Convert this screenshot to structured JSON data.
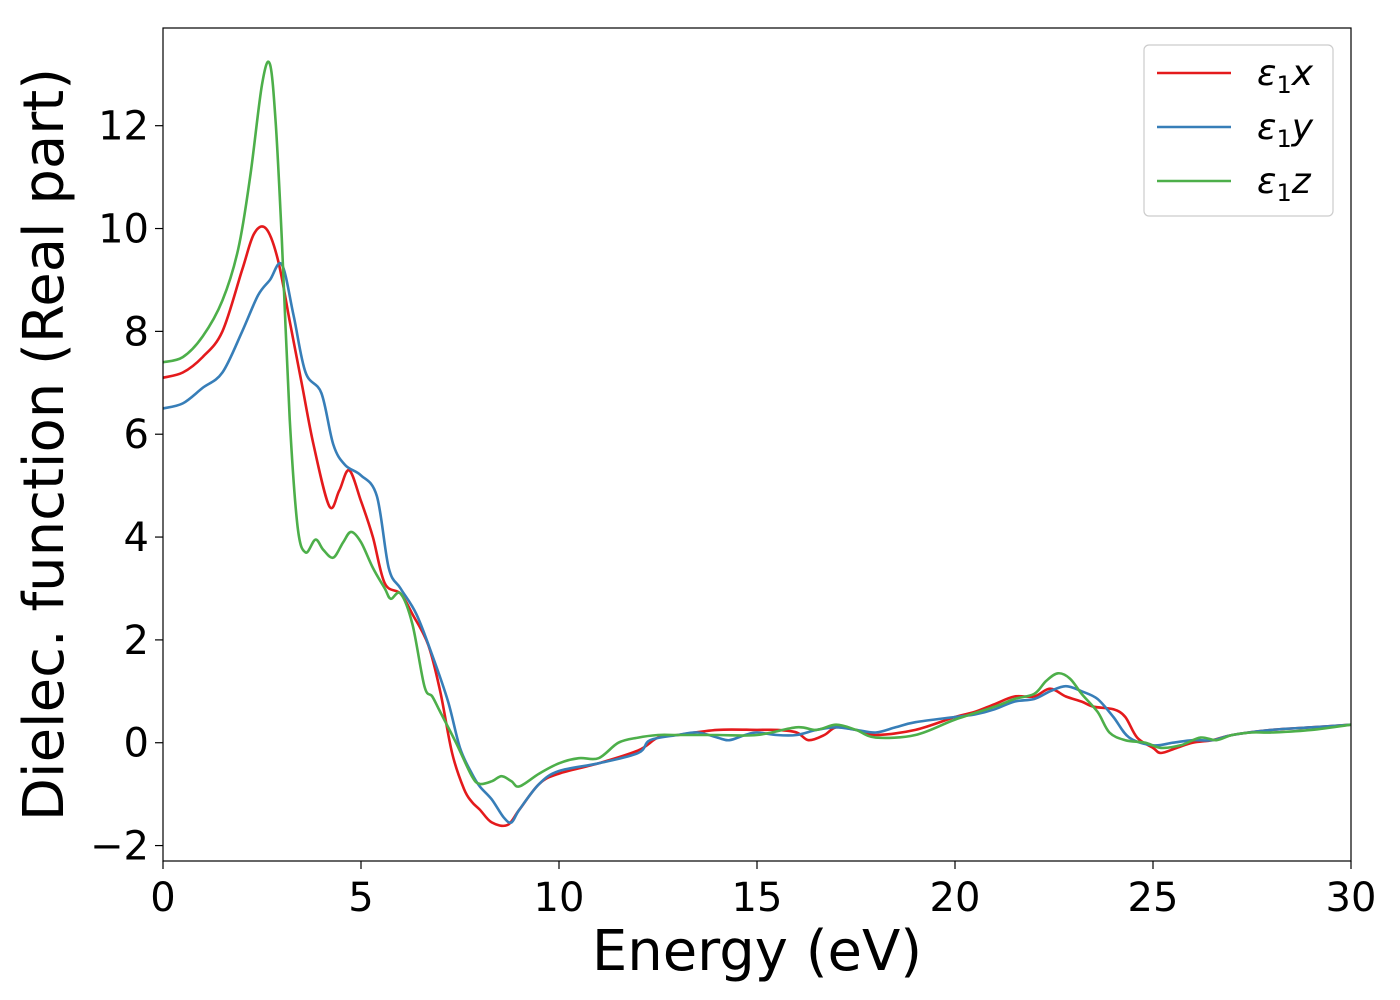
{
  "chart_data": {
    "type": "line",
    "title": "",
    "xlabel": "Energy (eV)",
    "ylabel": "Dielec. function (Real part)",
    "xlim": [
      0,
      30
    ],
    "ylim": [
      -2.3,
      13.9
    ],
    "xticks": [
      0,
      5,
      10,
      15,
      20,
      25,
      30
    ],
    "xtick_labels": [
      "0",
      "5",
      "10",
      "15",
      "20",
      "25",
      "30"
    ],
    "yticks": [
      -2,
      0,
      2,
      4,
      6,
      8,
      10,
      12
    ],
    "ytick_labels": [
      "−2",
      "0",
      "2",
      "4",
      "6",
      "8",
      "10",
      "12"
    ],
    "grid": false,
    "legend_position": "top-right",
    "series": [
      {
        "name": "ε1x",
        "symbol": "ε",
        "subscript": "1",
        "component": "x",
        "color": "#e41a1c",
        "points": [
          [
            0,
            7.1
          ],
          [
            0.5,
            7.2
          ],
          [
            1,
            7.5
          ],
          [
            1.5,
            8.0
          ],
          [
            2,
            9.2
          ],
          [
            2.3,
            9.9
          ],
          [
            2.6,
            10.0
          ],
          [
            2.9,
            9.4
          ],
          [
            3.2,
            8.2
          ],
          [
            3.5,
            7.0
          ],
          [
            3.8,
            5.8
          ],
          [
            4.2,
            4.6
          ],
          [
            4.45,
            4.9
          ],
          [
            4.7,
            5.3
          ],
          [
            5.0,
            4.7
          ],
          [
            5.3,
            4.0
          ],
          [
            5.6,
            3.1
          ],
          [
            6.0,
            2.9
          ],
          [
            6.3,
            2.5
          ],
          [
            6.7,
            1.9
          ],
          [
            7.0,
            1.0
          ],
          [
            7.3,
            -0.2
          ],
          [
            7.6,
            -0.9
          ],
          [
            7.8,
            -1.15
          ],
          [
            8.0,
            -1.3
          ],
          [
            8.3,
            -1.55
          ],
          [
            8.7,
            -1.6
          ],
          [
            9.0,
            -1.3
          ],
          [
            9.5,
            -0.8
          ],
          [
            10,
            -0.6
          ],
          [
            11,
            -0.4
          ],
          [
            12,
            -0.15
          ],
          [
            12.5,
            0.1
          ],
          [
            13,
            0.15
          ],
          [
            14,
            0.25
          ],
          [
            15,
            0.25
          ],
          [
            15.5,
            0.25
          ],
          [
            16,
            0.2
          ],
          [
            16.3,
            0.05
          ],
          [
            16.7,
            0.15
          ],
          [
            17,
            0.3
          ],
          [
            17.5,
            0.25
          ],
          [
            18,
            0.15
          ],
          [
            19,
            0.25
          ],
          [
            20,
            0.5
          ],
          [
            20.5,
            0.6
          ],
          [
            21,
            0.75
          ],
          [
            21.5,
            0.9
          ],
          [
            22,
            0.9
          ],
          [
            22.4,
            1.05
          ],
          [
            22.8,
            0.9
          ],
          [
            23.2,
            0.8
          ],
          [
            23.5,
            0.7
          ],
          [
            24,
            0.65
          ],
          [
            24.3,
            0.5
          ],
          [
            24.6,
            0.1
          ],
          [
            25,
            -0.1
          ],
          [
            25.2,
            -0.2
          ],
          [
            25.6,
            -0.1
          ],
          [
            26,
            0.0
          ],
          [
            26.5,
            0.05
          ],
          [
            27,
            0.15
          ],
          [
            28,
            0.25
          ],
          [
            29,
            0.3
          ],
          [
            30,
            0.35
          ]
        ]
      },
      {
        "name": "ε1y",
        "symbol": "ε",
        "subscript": "1",
        "component": "y",
        "color": "#377eb8",
        "points": [
          [
            0,
            6.5
          ],
          [
            0.5,
            6.6
          ],
          [
            1,
            6.9
          ],
          [
            1.5,
            7.2
          ],
          [
            2,
            8.0
          ],
          [
            2.4,
            8.7
          ],
          [
            2.7,
            9.0
          ],
          [
            3.0,
            9.3
          ],
          [
            3.3,
            8.3
          ],
          [
            3.6,
            7.2
          ],
          [
            4.0,
            6.8
          ],
          [
            4.3,
            5.8
          ],
          [
            4.6,
            5.4
          ],
          [
            5.0,
            5.2
          ],
          [
            5.4,
            4.8
          ],
          [
            5.7,
            3.4
          ],
          [
            6.0,
            3.0
          ],
          [
            6.4,
            2.5
          ],
          [
            6.8,
            1.7
          ],
          [
            7.2,
            0.8
          ],
          [
            7.5,
            -0.1
          ],
          [
            7.8,
            -0.6
          ],
          [
            8.0,
            -0.85
          ],
          [
            8.3,
            -1.1
          ],
          [
            8.6,
            -1.45
          ],
          [
            8.8,
            -1.55
          ],
          [
            9.0,
            -1.3
          ],
          [
            9.5,
            -0.8
          ],
          [
            10,
            -0.55
          ],
          [
            11,
            -0.4
          ],
          [
            12,
            -0.2
          ],
          [
            12.3,
            0.05
          ],
          [
            13,
            0.15
          ],
          [
            13.5,
            0.2
          ],
          [
            14,
            0.1
          ],
          [
            14.3,
            0.05
          ],
          [
            14.7,
            0.15
          ],
          [
            15,
            0.2
          ],
          [
            15.5,
            0.15
          ],
          [
            16,
            0.15
          ],
          [
            16.5,
            0.25
          ],
          [
            17,
            0.3
          ],
          [
            17.5,
            0.25
          ],
          [
            18,
            0.2
          ],
          [
            18.5,
            0.3
          ],
          [
            19,
            0.4
          ],
          [
            20,
            0.5
          ],
          [
            20.5,
            0.55
          ],
          [
            21,
            0.65
          ],
          [
            21.5,
            0.8
          ],
          [
            22,
            0.85
          ],
          [
            22.4,
            1.0
          ],
          [
            22.8,
            1.1
          ],
          [
            23.2,
            1.0
          ],
          [
            23.6,
            0.85
          ],
          [
            24,
            0.5
          ],
          [
            24.4,
            0.1
          ],
          [
            25,
            -0.05
          ],
          [
            25.5,
            0.0
          ],
          [
            26,
            0.05
          ],
          [
            26.5,
            0.05
          ],
          [
            27,
            0.15
          ],
          [
            28,
            0.25
          ],
          [
            29,
            0.3
          ],
          [
            30,
            0.35
          ]
        ]
      },
      {
        "name": "ε1z",
        "symbol": "ε",
        "subscript": "1",
        "component": "z",
        "color": "#4daf4a",
        "points": [
          [
            0,
            7.4
          ],
          [
            0.5,
            7.5
          ],
          [
            1,
            7.9
          ],
          [
            1.5,
            8.6
          ],
          [
            1.9,
            9.6
          ],
          [
            2.2,
            11.0
          ],
          [
            2.5,
            12.8
          ],
          [
            2.7,
            13.2
          ],
          [
            2.85,
            12.0
          ],
          [
            3.0,
            9.8
          ],
          [
            3.2,
            6.3
          ],
          [
            3.4,
            4.2
          ],
          [
            3.6,
            3.7
          ],
          [
            3.85,
            3.95
          ],
          [
            4.05,
            3.75
          ],
          [
            4.3,
            3.6
          ],
          [
            4.55,
            3.9
          ],
          [
            4.75,
            4.1
          ],
          [
            5.0,
            3.9
          ],
          [
            5.3,
            3.4
          ],
          [
            5.6,
            3.0
          ],
          [
            5.75,
            2.8
          ],
          [
            6.0,
            2.9
          ],
          [
            6.3,
            2.3
          ],
          [
            6.6,
            1.1
          ],
          [
            6.8,
            0.9
          ],
          [
            7.0,
            0.6
          ],
          [
            7.4,
            0.0
          ],
          [
            7.8,
            -0.65
          ],
          [
            8.0,
            -0.8
          ],
          [
            8.3,
            -0.75
          ],
          [
            8.55,
            -0.65
          ],
          [
            8.8,
            -0.75
          ],
          [
            9.0,
            -0.85
          ],
          [
            9.5,
            -0.6
          ],
          [
            10,
            -0.4
          ],
          [
            10.5,
            -0.3
          ],
          [
            11,
            -0.3
          ],
          [
            11.5,
            0.0
          ],
          [
            12,
            0.1
          ],
          [
            12.5,
            0.15
          ],
          [
            13,
            0.15
          ],
          [
            14,
            0.15
          ],
          [
            15,
            0.15
          ],
          [
            16,
            0.3
          ],
          [
            16.5,
            0.25
          ],
          [
            17,
            0.35
          ],
          [
            17.5,
            0.25
          ],
          [
            18,
            0.1
          ],
          [
            19,
            0.15
          ],
          [
            20,
            0.45
          ],
          [
            21,
            0.7
          ],
          [
            21.5,
            0.85
          ],
          [
            22,
            0.95
          ],
          [
            22.3,
            1.2
          ],
          [
            22.6,
            1.35
          ],
          [
            22.9,
            1.25
          ],
          [
            23.2,
            0.95
          ],
          [
            23.6,
            0.6
          ],
          [
            23.9,
            0.2
          ],
          [
            24.3,
            0.05
          ],
          [
            24.8,
            0.0
          ],
          [
            25.2,
            -0.1
          ],
          [
            25.7,
            -0.05
          ],
          [
            26.2,
            0.1
          ],
          [
            26.6,
            0.05
          ],
          [
            27,
            0.15
          ],
          [
            27.5,
            0.2
          ],
          [
            28,
            0.2
          ],
          [
            29,
            0.25
          ],
          [
            30,
            0.35
          ]
        ]
      }
    ]
  }
}
